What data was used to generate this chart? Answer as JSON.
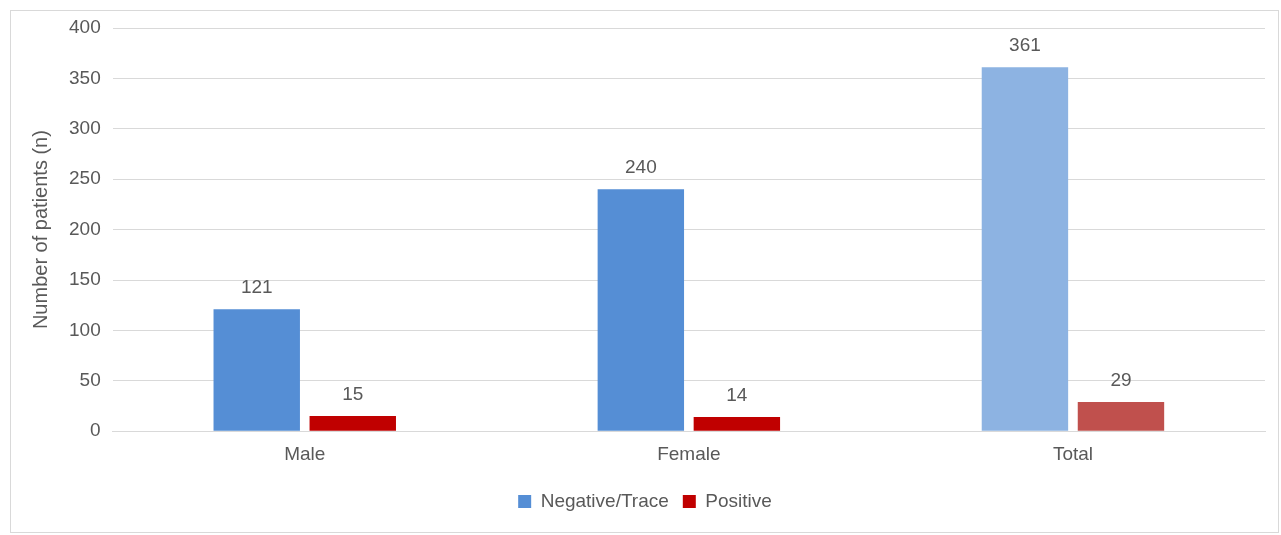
{
  "chart_data": {
    "type": "bar",
    "ylabel": "Number of patients (n)",
    "categories": [
      "Male",
      "Female",
      "Total"
    ],
    "series": [
      {
        "name": "Negative/Trace",
        "color": "#558ed5",
        "colors": [
          "#558ed5",
          "#558ed5",
          "#8db3e2"
        ],
        "values": [
          121,
          240,
          361
        ]
      },
      {
        "name": "Positive",
        "color": "#c00000",
        "colors": [
          "#c00000",
          "#c00000",
          "#c0504d"
        ],
        "values": [
          15,
          14,
          29
        ]
      }
    ],
    "ylim": [
      0,
      400
    ],
    "yticks": [
      0,
      50,
      100,
      150,
      200,
      250,
      300,
      350,
      400
    ],
    "grid": "y",
    "legend": "bottom",
    "data_labels": true
  }
}
